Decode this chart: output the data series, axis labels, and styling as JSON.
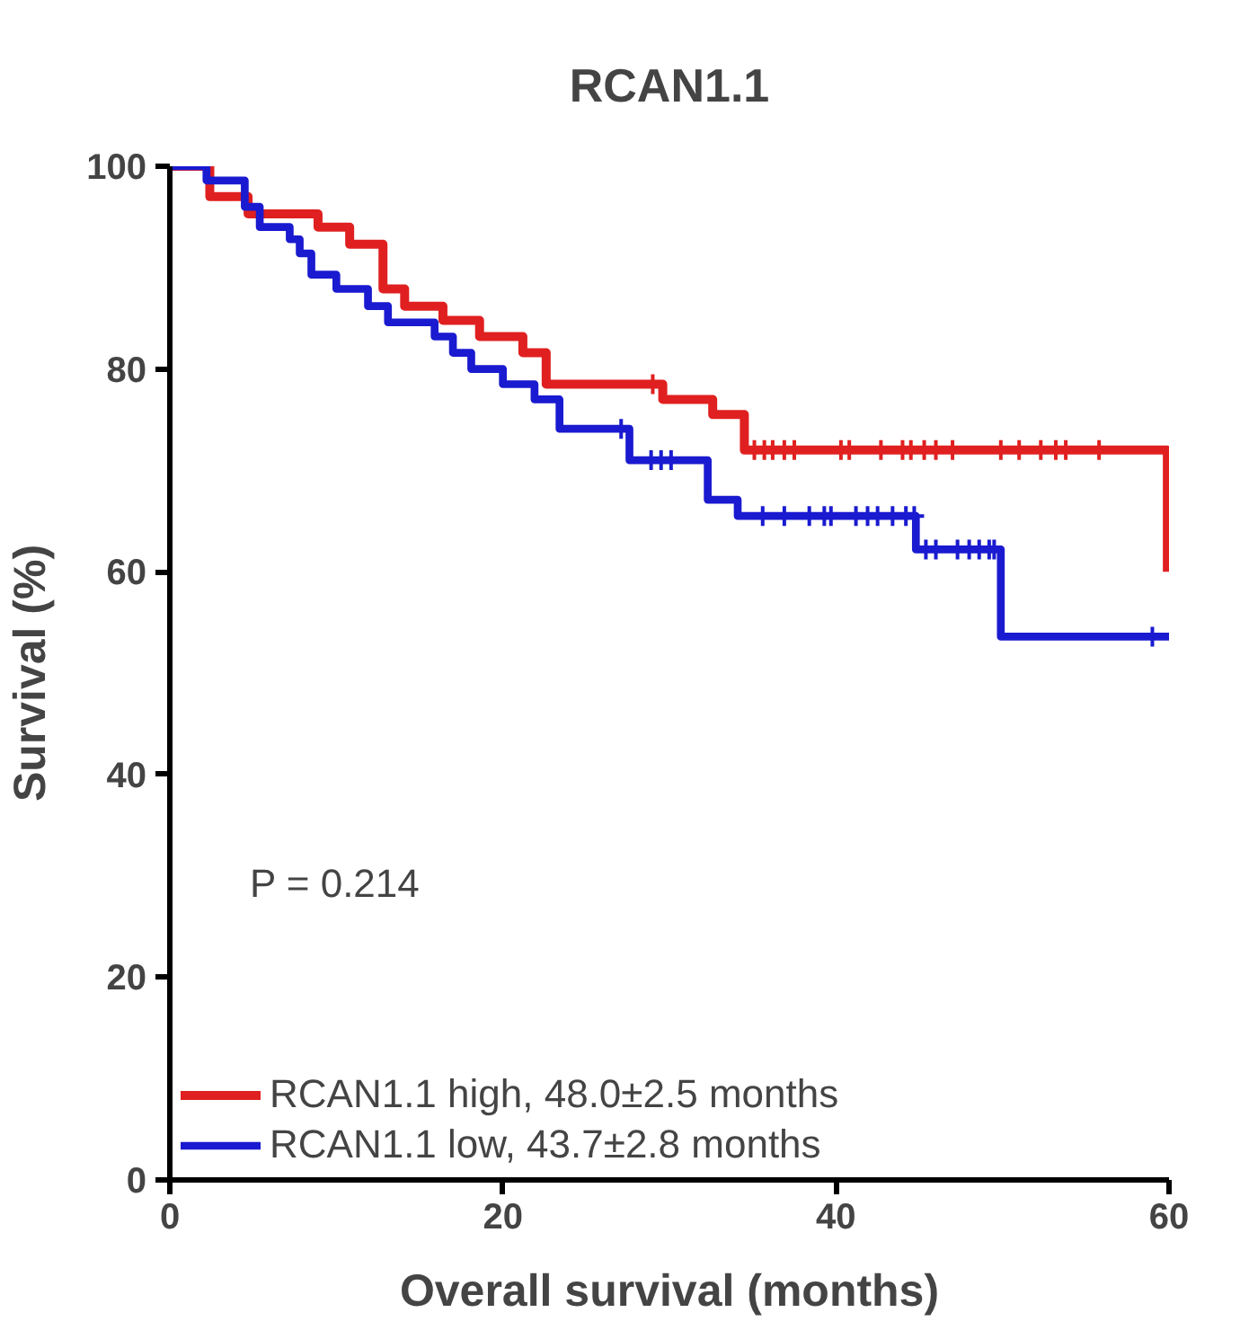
{
  "chart_data": {
    "type": "step",
    "title": "RCAN1.1",
    "xlabel": "Overall survival (months)",
    "ylabel": "Survival (%)",
    "xlim": [
      0,
      60
    ],
    "ylim": [
      0,
      100
    ],
    "xticks": [
      0,
      20,
      40,
      60
    ],
    "yticks": [
      0,
      20,
      40,
      60,
      80,
      100
    ],
    "grid": false,
    "legend": "bottom left",
    "line_style": "solid",
    "annotations": [
      "P = 0.214"
    ],
    "series": [
      {
        "name": "RCAN1.1 high, 48.0±2.5 months",
        "color": "#e02020",
        "x": [
          0,
          2.4,
          4.7,
          8.9,
          10.8,
          12.8,
          14.1,
          16.4,
          18.6,
          21.2,
          22.6,
          29.6,
          32.6,
          34.5,
          59.9
        ],
        "values": [
          100,
          97,
          95.3,
          94,
          92.3,
          87.9,
          86.2,
          84.8,
          83.2,
          81.6,
          78.5,
          77,
          75.5,
          72,
          60
        ]
      },
      {
        "name": "RCAN1.1 low, 43.7±2.8 months",
        "color": "#1a1ad0",
        "x": [
          0,
          2.2,
          4.5,
          5.4,
          7.2,
          7.8,
          8.5,
          10.0,
          11.9,
          13.1,
          15.9,
          17.0,
          18.1,
          20.0,
          21.9,
          23.4,
          27.6,
          32.3,
          34.1,
          44.8,
          49.9,
          60
        ],
        "values": [
          100,
          98.6,
          96,
          94,
          92.8,
          91.4,
          89.3,
          87.9,
          86.2,
          84.6,
          83.2,
          81.6,
          80,
          78.5,
          77,
          74.1,
          71,
          67.1,
          65.5,
          62.2,
          53.6,
          53.6
        ]
      },
      {
        "type": "scatter",
        "marker": "cross",
        "color": "#e02020",
        "x": [
          29.0,
          35.1,
          35.7,
          36.2,
          36.9,
          37.5,
          40.3,
          40.8,
          42.7,
          44.0,
          44.5,
          45.3,
          46.0,
          47.0,
          49.9,
          51.0,
          52.3,
          53.2,
          53.8,
          55.8
        ],
        "values": [
          78.5,
          72,
          72,
          72,
          72,
          72,
          72,
          72,
          72,
          72,
          72,
          72,
          72,
          72,
          72,
          72,
          72,
          72,
          72,
          72
        ]
      },
      {
        "type": "scatter",
        "marker": "cross",
        "color": "#1a1ad0",
        "x": [
          27.1,
          28.9,
          29.5,
          30.1,
          35.6,
          36.9,
          38.4,
          39.3,
          39.7,
          41.2,
          41.9,
          42.5,
          43.4,
          44.2,
          44.7,
          45.4,
          46.0,
          47.3,
          48.0,
          48.6,
          49.2,
          49.5,
          59.0
        ],
        "values": [
          74.1,
          71,
          71,
          71,
          65.5,
          65.5,
          65.5,
          65.5,
          65.5,
          65.5,
          65.5,
          65.5,
          65.5,
          65.5,
          65.5,
          62.2,
          62.2,
          62.2,
          62.2,
          62.2,
          62.2,
          62.2,
          53.6
        ]
      }
    ]
  }
}
